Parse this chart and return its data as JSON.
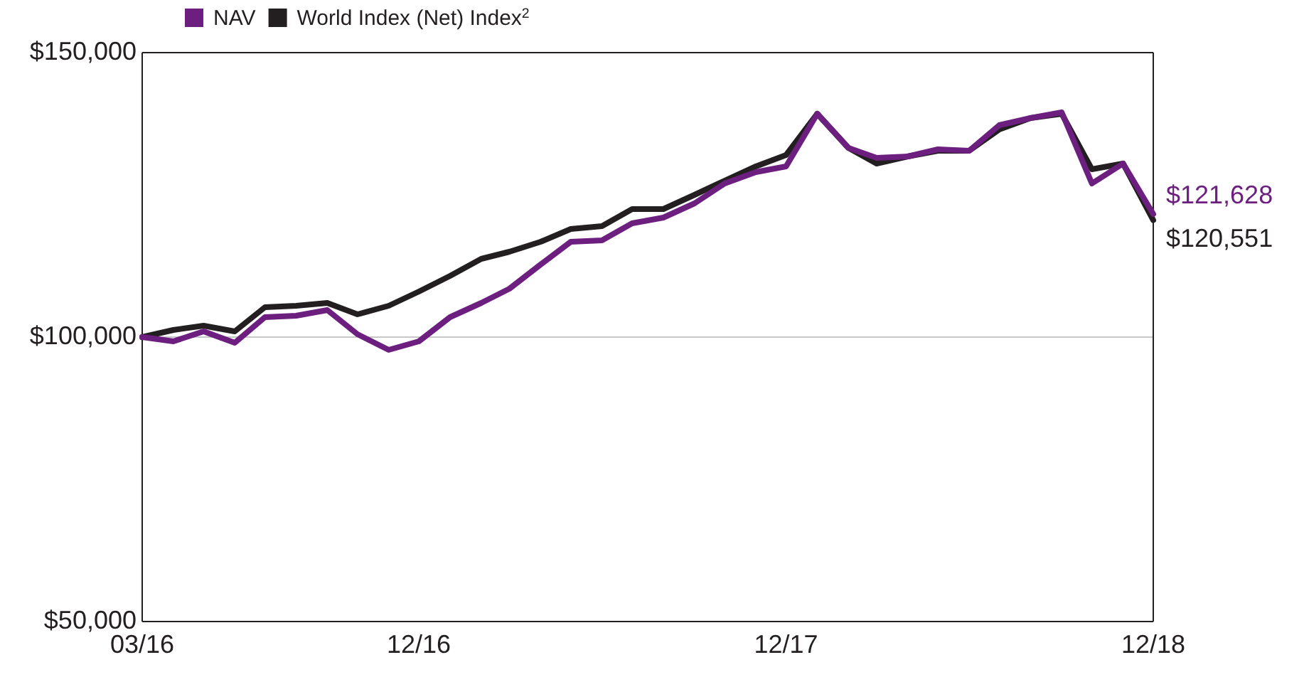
{
  "chart_data": {
    "type": "line",
    "x": [
      "2016-03",
      "2016-04",
      "2016-05",
      "2016-06",
      "2016-07",
      "2016-08",
      "2016-09",
      "2016-10",
      "2016-11",
      "2016-12",
      "2017-01",
      "2017-02",
      "2017-03",
      "2017-04",
      "2017-05",
      "2017-06",
      "2017-07",
      "2017-08",
      "2017-09",
      "2017-10",
      "2017-11",
      "2017-12",
      "2018-01",
      "2018-02",
      "2018-03",
      "2018-04",
      "2018-05",
      "2018-06",
      "2018-07",
      "2018-08",
      "2018-09",
      "2018-10",
      "2018-11",
      "2018-12"
    ],
    "series": [
      {
        "name": "World Index (Net) Index$^{2}$",
        "color": "#231f20",
        "values": [
          100000,
          101250,
          102000,
          101000,
          105250,
          105500,
          106000,
          104000,
          105500,
          108000,
          110750,
          113750,
          115000,
          116750,
          119000,
          119500,
          122500,
          122500,
          125000,
          127500,
          130000,
          132000,
          139250,
          133250,
          130500,
          131750,
          132750,
          132750,
          136500,
          138500,
          139250,
          129500,
          130500,
          120551
        ],
        "value_labels": [
          null,
          null,
          null,
          null,
          null,
          null,
          null,
          null,
          null,
          null,
          null,
          null,
          null,
          null,
          null,
          null,
          null,
          null,
          null,
          null,
          null,
          null,
          null,
          null,
          null,
          null,
          null,
          null,
          null,
          null,
          null,
          null,
          null,
          "$120,551"
        ]
      },
      {
        "name": "NAV",
        "color": "#6d1f80",
        "values": [
          100000,
          99250,
          101000,
          99000,
          103500,
          103750,
          104750,
          100500,
          97750,
          99250,
          103500,
          106000,
          108500,
          112750,
          116750,
          117000,
          120000,
          121000,
          123500,
          127000,
          129000,
          130000,
          139250,
          133250,
          131500,
          131750,
          133000,
          132750,
          137250,
          138500,
          139500,
          127000,
          130500,
          121628
        ],
        "value_labels": [
          null,
          null,
          null,
          null,
          null,
          null,
          null,
          null,
          null,
          null,
          null,
          null,
          null,
          null,
          null,
          null,
          null,
          null,
          null,
          null,
          null,
          null,
          null,
          null,
          null,
          null,
          null,
          null,
          null,
          null,
          null,
          null,
          null,
          "$121,628"
        ]
      }
    ],
    "xlim": [
      "2016-03",
      "2018-12"
    ],
    "xticks": [
      {
        "value": "2016-03",
        "label": "03/16"
      },
      {
        "value": "2016-12",
        "label": "12/16"
      },
      {
        "value": "2017-12",
        "label": "12/17"
      },
      {
        "value": "2018-12",
        "label": "12/18"
      }
    ],
    "ylim": [
      50000,
      150000
    ],
    "yticks": [
      {
        "value": 50000,
        "label": "$50,000"
      },
      {
        "value": 100000,
        "label": "$100,000"
      },
      {
        "value": 150000,
        "label": "$150,000"
      }
    ],
    "grid": "y",
    "legend": "top left",
    "marker": "none",
    "line_style": "solid"
  }
}
